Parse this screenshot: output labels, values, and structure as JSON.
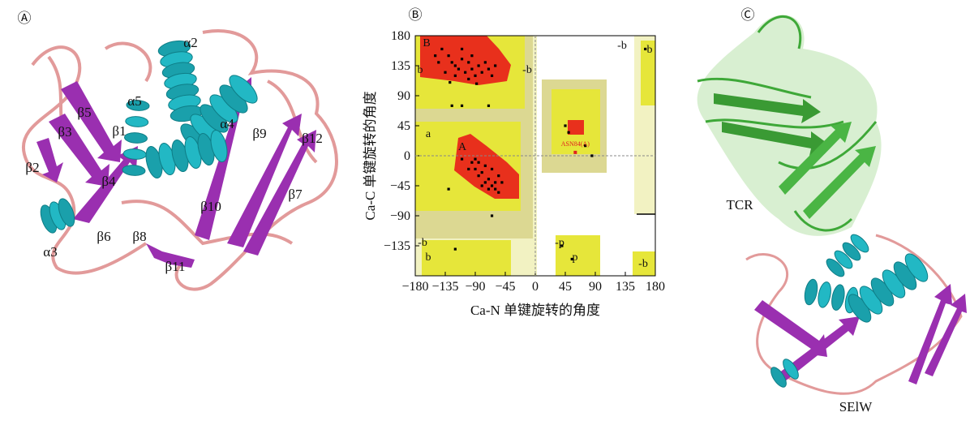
{
  "panel_a": {
    "label": "Ⓐ",
    "elements": [
      "α2",
      "α5",
      "β5",
      "β3",
      "β1",
      "α4",
      "β9",
      "β12",
      "β2",
      "β4",
      "β7",
      "α3",
      "β6",
      "β8",
      "β10",
      "β11"
    ]
  },
  "chart_data": {
    "type": "scatter",
    "label": "Ⓑ",
    "xlabel": "Ca-N 单键旋转的角度",
    "ylabel": "Ca-C 单键旋转的角度",
    "xlim": [
      -180,
      180
    ],
    "ylim": [
      -180,
      180
    ],
    "xticks": [
      {
        "value": -180,
        "label": "−180"
      },
      {
        "value": -135,
        "label": "−135"
      },
      {
        "value": -90,
        "label": "−90"
      },
      {
        "value": -45,
        "label": "−45"
      },
      0,
      45,
      90,
      135,
      180
    ],
    "yticks": [
      {
        "value": -135,
        "label": "−135"
      },
      {
        "value": -90,
        "label": "−90"
      },
      {
        "value": -45,
        "label": "−45"
      },
      0,
      45,
      90,
      135,
      180
    ],
    "region_labels": [
      "B",
      "b",
      "-b",
      "a",
      "A",
      "-b",
      "b",
      "-b",
      "b",
      "-p",
      "p",
      "-b"
    ],
    "series": [
      {
        "color": "#000000",
        "x": [
          -130,
          -125,
          -120,
          -115,
          -110,
          -105,
          -100,
          -95,
          -90,
          -85,
          -80,
          -75,
          -70,
          -140,
          -135,
          -145,
          -110,
          -100,
          -120,
          -95,
          -60,
          -65,
          -150,
          -128,
          -88,
          -95,
          -90,
          -85,
          -80,
          -75,
          -70,
          -65,
          -60,
          -55,
          -65,
          -70,
          -80,
          -75,
          -60,
          -50,
          -90,
          -100,
          -85,
          -55,
          -110,
          -130,
          -110,
          -125,
          -70,
          -65,
          45,
          50,
          75,
          85,
          40,
          55,
          165,
          -120
        ],
        "y": [
          150,
          140,
          135,
          130,
          145,
          125,
          140,
          130,
          120,
          135,
          125,
          140,
          130,
          160,
          125,
          140,
          160,
          115,
          120,
          150,
          135,
          120,
          150,
          110,
          108,
          -10,
          -20,
          -30,
          -25,
          -40,
          -35,
          -45,
          -40,
          -30,
          -20,
          -50,
          -45,
          -15,
          -50,
          -40,
          -5,
          -20,
          -10,
          -55,
          -5,
          -50,
          75,
          75,
          75,
          -90,
          45,
          35,
          15,
          0,
          -135,
          -155,
          160,
          -140
        ]
      }
    ],
    "highlight": {
      "x": 60,
      "y": 5,
      "label": "ASN84(A)",
      "color": "#e02020"
    }
  },
  "panel_c": {
    "label": "Ⓒ",
    "top": "TCR",
    "bottom": "SElW"
  }
}
